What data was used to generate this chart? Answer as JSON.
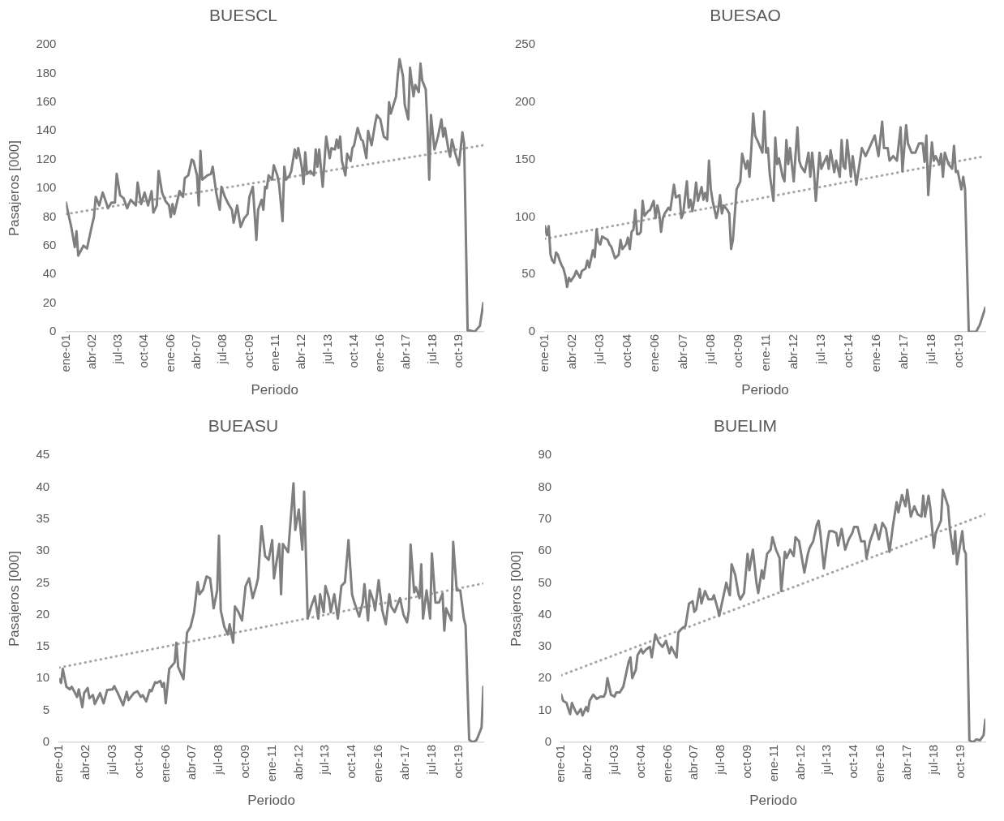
{
  "chart_data": [
    {
      "type": "line",
      "title": "BUESCL",
      "xlabel": "Periodo",
      "ylabel": "Pasajeros [000]",
      "xlim": [
        "2001-01",
        "2020-12"
      ],
      "xticks": [
        {
          "value": "2001-01",
          "label": "ene-01"
        },
        {
          "value": "2002-04",
          "label": "abr-02"
        },
        {
          "value": "2003-07",
          "label": "jul-03"
        },
        {
          "value": "2004-10",
          "label": "oct-04"
        },
        {
          "value": "2006-01",
          "label": "ene-06"
        },
        {
          "value": "2007-04",
          "label": "abr-07"
        },
        {
          "value": "2008-07",
          "label": "jul-08"
        },
        {
          "value": "2009-10",
          "label": "oct-09"
        },
        {
          "value": "2011-01",
          "label": "ene-11"
        },
        {
          "value": "2012-04",
          "label": "abr-12"
        },
        {
          "value": "2013-07",
          "label": "jul-13"
        },
        {
          "value": "2014-10",
          "label": "oct-14"
        },
        {
          "value": "2016-01",
          "label": "ene-16"
        },
        {
          "value": "2017-04",
          "label": "abr-17"
        },
        {
          "value": "2018-07",
          "label": "jul-18"
        },
        {
          "value": "2019-10",
          "label": "oct-19"
        }
      ],
      "ylim": [
        0,
        200
      ],
      "yticks": [
        0,
        20,
        40,
        60,
        80,
        100,
        120,
        140,
        160,
        180,
        200
      ],
      "grid": false,
      "legend": false,
      "marker": "none",
      "series": [
        {
          "color": "#7f7f7f",
          "line_style": "solid",
          "x": [
            "2001-01",
            "2001-02",
            "2001-04",
            "2001-06",
            "2001-07",
            "2001-08",
            "2001-11",
            "2002-01",
            "2002-04",
            "2002-05",
            "2002-06",
            "2002-08",
            "2002-10",
            "2002-12",
            "2003-01",
            "2003-03",
            "2003-05",
            "2003-06",
            "2003-08",
            "2003-10",
            "2003-12",
            "2004-02",
            "2004-05",
            "2004-06",
            "2004-08",
            "2004-10",
            "2004-12",
            "2005-02",
            "2005-03",
            "2005-05",
            "2005-06",
            "2005-08",
            "2005-10",
            "2005-12",
            "2006-01",
            "2006-02",
            "2006-03",
            "2006-06",
            "2006-08",
            "2006-09",
            "2006-11",
            "2007-01",
            "2007-02",
            "2007-04",
            "2007-05",
            "2007-06",
            "2007-07",
            "2007-10",
            "2007-12",
            "2008-01",
            "2008-03",
            "2008-04",
            "2008-05",
            "2008-06",
            "2008-08",
            "2008-10",
            "2008-12",
            "2009-01",
            "2009-03",
            "2009-05",
            "2009-07",
            "2009-09",
            "2009-10",
            "2009-12",
            "2010-02",
            "2010-03",
            "2010-05",
            "2010-06",
            "2010-07",
            "2010-08",
            "2010-09",
            "2010-11",
            "2010-12",
            "2011-02",
            "2011-03",
            "2011-05",
            "2011-06",
            "2011-07",
            "2011-09",
            "2011-10",
            "2011-12",
            "2012-01",
            "2012-02",
            "2012-04",
            "2012-05",
            "2012-06",
            "2012-07",
            "2012-09",
            "2012-11",
            "2012-12",
            "2013-01",
            "2013-02",
            "2013-04",
            "2013-06",
            "2013-08",
            "2013-09",
            "2013-11",
            "2013-12",
            "2014-01",
            "2014-02",
            "2014-03",
            "2014-05",
            "2014-06",
            "2014-08",
            "2014-09",
            "2014-10",
            "2014-12",
            "2015-02",
            "2015-03",
            "2015-05",
            "2015-06",
            "2015-08",
            "2015-10",
            "2015-11",
            "2016-01",
            "2016-03",
            "2016-05",
            "2016-06",
            "2016-07",
            "2016-10",
            "2016-11",
            "2016-12",
            "2017-02",
            "2017-03",
            "2017-05",
            "2017-06",
            "2017-08",
            "2017-09",
            "2017-11",
            "2017-12",
            "2018-01",
            "2018-03",
            "2018-04",
            "2018-05",
            "2018-06",
            "2018-08",
            "2018-10",
            "2018-12",
            "2019-01",
            "2019-02",
            "2019-04",
            "2019-05",
            "2019-06",
            "2019-08",
            "2019-10",
            "2019-12",
            "2020-01",
            "2020-03",
            "2020-04",
            "2020-07",
            "2020-10",
            "2020-12"
          ],
          "values": [
            90,
            84,
            73,
            59,
            70,
            53,
            60,
            58,
            75,
            80,
            94,
            88,
            97,
            90,
            86,
            90,
            90,
            110,
            95,
            93,
            86,
            92,
            88,
            104,
            89,
            97,
            88,
            98,
            83,
            88,
            112,
            97,
            91,
            88,
            80,
            89,
            82,
            98,
            94,
            107,
            109,
            120,
            119,
            109,
            88,
            126,
            106,
            109,
            110,
            115,
            97,
            91,
            85,
            101,
            94,
            89,
            85,
            76,
            88,
            73,
            79,
            82,
            94,
            101,
            64,
            85,
            92,
            85,
            101,
            100,
            109,
            106,
            116,
            109,
            103,
            77,
            115,
            106,
            109,
            112,
            127,
            121,
            128,
            115,
            103,
            125,
            110,
            112,
            109,
            127,
            115,
            127,
            101,
            136,
            121,
            128,
            127,
            134,
            128,
            136,
            119,
            109,
            124,
            119,
            128,
            130,
            142,
            134,
            133,
            121,
            140,
            130,
            145,
            151,
            148,
            136,
            134,
            160,
            152,
            164,
            179,
            190,
            178,
            158,
            148,
            184,
            164,
            172,
            167,
            187,
            175,
            169,
            143,
            106,
            151,
            127,
            136,
            148,
            136,
            142,
            127,
            122,
            134,
            124,
            116,
            139,
            131,
            1,
            1,
            0,
            4,
            20
          ]
        },
        {
          "type": "line",
          "color": "#a5a5a5",
          "line_style": "dotted",
          "x": [
            "2001-01",
            "2020-12"
          ],
          "values": [
            82,
            130
          ]
        }
      ]
    },
    {
      "type": "line",
      "title": "BUESAO",
      "xlabel": "Periodo",
      "xlim": [
        "2001-01",
        "2020-12"
      ],
      "xticks": [
        {
          "value": "2001-01",
          "label": "ene-01"
        },
        {
          "value": "2002-04",
          "label": "abr-02"
        },
        {
          "value": "2003-07",
          "label": "jul-03"
        },
        {
          "value": "2004-10",
          "label": "oct-04"
        },
        {
          "value": "2006-01",
          "label": "ene-06"
        },
        {
          "value": "2007-04",
          "label": "abr-07"
        },
        {
          "value": "2008-07",
          "label": "jul-08"
        },
        {
          "value": "2009-10",
          "label": "oct-09"
        },
        {
          "value": "2011-01",
          "label": "ene-11"
        },
        {
          "value": "2012-04",
          "label": "abr-12"
        },
        {
          "value": "2013-07",
          "label": "jul-13"
        },
        {
          "value": "2014-10",
          "label": "oct-14"
        },
        {
          "value": "2016-01",
          "label": "ene-16"
        },
        {
          "value": "2017-04",
          "label": "abr-17"
        },
        {
          "value": "2018-07",
          "label": "jul-18"
        },
        {
          "value": "2019-10",
          "label": "oct-19"
        }
      ],
      "ylim": [
        0,
        250
      ],
      "yticks": [
        0,
        50,
        100,
        150,
        200,
        250
      ],
      "grid": false,
      "legend": false,
      "marker": "none",
      "series": [
        {
          "color": "#7f7f7f",
          "line_style": "solid",
          "x": [
            "2001-01",
            "2001-02",
            "2001-03",
            "2001-04",
            "2001-05",
            "2001-06",
            "2001-07",
            "2001-08",
            "2001-09",
            "2001-10",
            "2001-11",
            "2001-12",
            "2002-01",
            "2002-02",
            "2002-03",
            "2002-05",
            "2002-06",
            "2002-08",
            "2002-09",
            "2002-11",
            "2002-12",
            "2003-01",
            "2003-03",
            "2003-04",
            "2003-05",
            "2003-06",
            "2003-07",
            "2003-08",
            "2003-11",
            "2003-12",
            "2004-01",
            "2004-03",
            "2004-05",
            "2004-06",
            "2004-07",
            "2004-09",
            "2004-10",
            "2004-11",
            "2004-12",
            "2005-01",
            "2005-02",
            "2005-03",
            "2005-04",
            "2005-05",
            "2005-06",
            "2005-07",
            "2005-08",
            "2005-09",
            "2005-10",
            "2005-12",
            "2006-01",
            "2006-02",
            "2006-03",
            "2006-04",
            "2006-05",
            "2006-06",
            "2006-08",
            "2006-09",
            "2006-11",
            "2006-12",
            "2007-02",
            "2007-03",
            "2007-04",
            "2007-06",
            "2007-07",
            "2007-08",
            "2007-09",
            "2007-10",
            "2007-11",
            "2007-12",
            "2008-02",
            "2008-03",
            "2008-04",
            "2008-05",
            "2008-06",
            "2008-07",
            "2008-08",
            "2008-10",
            "2008-11",
            "2008-12",
            "2009-01",
            "2009-02",
            "2009-04",
            "2009-05",
            "2009-06",
            "2009-07",
            "2009-09",
            "2009-11",
            "2009-12",
            "2010-02",
            "2010-03",
            "2010-04",
            "2010-05",
            "2010-06",
            "2010-07",
            "2010-09",
            "2010-11",
            "2010-12",
            "2011-01",
            "2011-02",
            "2011-03",
            "2011-05",
            "2011-06",
            "2011-07",
            "2011-08",
            "2011-10",
            "2011-11",
            "2011-12",
            "2012-01",
            "2012-02",
            "2012-04",
            "2012-06",
            "2012-07",
            "2012-08",
            "2012-10",
            "2012-12",
            "2013-01",
            "2013-02",
            "2013-03",
            "2013-04",
            "2013-06",
            "2013-07",
            "2013-08",
            "2013-10",
            "2013-11",
            "2013-12",
            "2014-02",
            "2014-03",
            "2014-05",
            "2014-06",
            "2014-07",
            "2014-08",
            "2014-09",
            "2014-11",
            "2014-12",
            "2015-02",
            "2015-05",
            "2015-07",
            "2015-09",
            "2015-12",
            "2016-02",
            "2016-04",
            "2016-05",
            "2016-07",
            "2016-08",
            "2016-10",
            "2016-12",
            "2017-02",
            "2017-03",
            "2017-05",
            "2017-06",
            "2017-08",
            "2017-10",
            "2017-12",
            "2018-02",
            "2018-03",
            "2018-04",
            "2018-05",
            "2018-07",
            "2018-08",
            "2018-09",
            "2018-11",
            "2018-12",
            "2019-01",
            "2019-02",
            "2019-04",
            "2019-06",
            "2019-07",
            "2019-08",
            "2019-09",
            "2019-11",
            "2019-12",
            "2020-01",
            "2020-03",
            "2020-05",
            "2020-07",
            "2020-09",
            "2020-12"
          ],
          "values": [
            92,
            84,
            92,
            67,
            62,
            60,
            69,
            67,
            62,
            58,
            55,
            49,
            39,
            47,
            44,
            49,
            53,
            47,
            53,
            55,
            62,
            56,
            71,
            65,
            89,
            78,
            76,
            83,
            80,
            76,
            74,
            64,
            67,
            80,
            72,
            76,
            82,
            72,
            87,
            89,
            106,
            85,
            85,
            87,
            114,
            101,
            103,
            105,
            106,
            114,
            99,
            110,
            103,
            87,
            99,
            103,
            108,
            106,
            128,
            117,
            119,
            99,
            103,
            131,
            108,
            115,
            105,
            115,
            130,
            114,
            126,
            115,
            121,
            114,
            149,
            124,
            114,
            99,
            106,
            119,
            103,
            110,
            106,
            103,
            72,
            80,
            124,
            131,
            155,
            142,
            149,
            135,
            160,
            190,
            171,
            164,
            156,
            192,
            156,
            160,
            137,
            114,
            169,
            146,
            151,
            135,
            131,
            167,
            146,
            160,
            131,
            178,
            149,
            144,
            139,
            156,
            135,
            156,
            139,
            114,
            156,
            142,
            146,
            153,
            142,
            158,
            139,
            149,
            135,
            167,
            144,
            142,
            167,
            135,
            153,
            128,
            160,
            153,
            160,
            171,
            153,
            183,
            160,
            160,
            149,
            153,
            149,
            178,
            140,
            180,
            164,
            156,
            156,
            164,
            164,
            148,
            171,
            119,
            165,
            149,
            153,
            146,
            155,
            135,
            156,
            146,
            142,
            162,
            139,
            140,
            124,
            135,
            124,
            0,
            0,
            0,
            6,
            21
          ]
        },
        {
          "type": "line",
          "color": "#a5a5a5",
          "line_style": "dotted",
          "x": [
            "2001-01",
            "2020-12"
          ],
          "values": [
            81,
            153
          ]
        }
      ]
    },
    {
      "type": "line",
      "title": "BUEASU",
      "xlabel": "Periodo",
      "ylabel": "Pasajeros [000]",
      "xlim": [
        "2001-01",
        "2020-12"
      ],
      "xticks": [
        {
          "value": "2001-01",
          "label": "ene-01"
        },
        {
          "value": "2002-04",
          "label": "abr-02"
        },
        {
          "value": "2003-07",
          "label": "jul-03"
        },
        {
          "value": "2004-10",
          "label": "oct-04"
        },
        {
          "value": "2006-01",
          "label": "ene-06"
        },
        {
          "value": "2007-04",
          "label": "abr-07"
        },
        {
          "value": "2008-07",
          "label": "jul-08"
        },
        {
          "value": "2009-10",
          "label": "oct-09"
        },
        {
          "value": "2011-01",
          "label": "ene-11"
        },
        {
          "value": "2012-04",
          "label": "abr-12"
        },
        {
          "value": "2013-07",
          "label": "jul-13"
        },
        {
          "value": "2014-10",
          "label": "oct-14"
        },
        {
          "value": "2016-01",
          "label": "ene-16"
        },
        {
          "value": "2017-04",
          "label": "abr-17"
        },
        {
          "value": "2018-07",
          "label": "jul-18"
        },
        {
          "value": "2019-10",
          "label": "oct-19"
        }
      ],
      "ylim": [
        0,
        45
      ],
      "yticks": [
        0,
        5,
        10,
        15,
        20,
        25,
        30,
        35,
        40,
        45
      ],
      "grid": false,
      "legend": false,
      "marker": "none",
      "series": [
        {
          "color": "#7f7f7f",
          "line_style": "solid",
          "x": [
            "2001-01",
            "2001-02",
            "2001-03",
            "2001-05",
            "2001-07",
            "2001-08",
            "2001-09",
            "2001-11",
            "2001-12",
            "2002-02",
            "2002-03",
            "2002-05",
            "2002-06",
            "2002-08",
            "2002-09",
            "2002-12",
            "2003-02",
            "2003-04",
            "2003-07",
            "2003-08",
            "2003-10",
            "2004-01",
            "2004-03",
            "2004-04",
            "2004-07",
            "2004-09",
            "2004-11",
            "2004-12",
            "2005-02",
            "2005-04",
            "2005-05",
            "2005-07",
            "2005-08",
            "2005-10",
            "2005-11",
            "2005-12",
            "2006-01",
            "2006-03",
            "2006-06",
            "2006-07",
            "2006-08",
            "2006-11",
            "2007-01",
            "2007-03",
            "2007-05",
            "2007-07",
            "2007-08",
            "2007-10",
            "2007-12",
            "2008-02",
            "2008-03",
            "2008-04",
            "2008-06",
            "2008-07",
            "2008-08",
            "2008-10",
            "2008-12",
            "2009-01",
            "2009-03",
            "2009-04",
            "2009-06",
            "2009-08",
            "2009-10",
            "2009-12",
            "2010-02",
            "2010-04",
            "2010-05",
            "2010-07",
            "2010-09",
            "2010-11",
            "2011-01",
            "2011-02",
            "2011-05",
            "2011-06",
            "2011-07",
            "2011-10",
            "2012-01",
            "2012-02",
            "2012-04",
            "2012-06",
            "2012-07",
            "2012-09",
            "2012-11",
            "2013-01",
            "2013-03",
            "2013-04",
            "2013-06",
            "2013-07",
            "2013-09",
            "2013-10",
            "2013-12",
            "2014-02",
            "2014-04",
            "2014-06",
            "2014-08",
            "2014-10",
            "2014-11",
            "2015-02",
            "2015-04",
            "2015-05",
            "2015-07",
            "2015-08",
            "2015-10",
            "2015-11",
            "2016-01",
            "2016-03",
            "2016-05",
            "2016-07",
            "2016-08",
            "2016-10",
            "2016-12",
            "2017-01",
            "2017-03",
            "2017-05",
            "2017-06",
            "2017-07",
            "2017-09",
            "2017-10",
            "2017-12",
            "2018-01",
            "2018-02",
            "2018-04",
            "2018-06",
            "2018-07",
            "2018-09",
            "2018-11",
            "2019-01",
            "2019-02",
            "2019-03",
            "2019-06",
            "2019-07",
            "2019-09",
            "2019-11",
            "2020-01",
            "2020-02",
            "2020-04",
            "2020-06",
            "2020-08",
            "2020-09",
            "2020-11",
            "2020-12"
          ],
          "values": [
            9.9,
            9.3,
            11.5,
            8.7,
            8.3,
            8.7,
            8.2,
            7.1,
            8.3,
            5.5,
            7.7,
            8.5,
            6.9,
            7.4,
            6.0,
            7.7,
            6.1,
            8.2,
            8.3,
            8.8,
            7.7,
            5.8,
            7.9,
            6.6,
            7.7,
            8.0,
            7.1,
            7.4,
            6.4,
            8.2,
            8.0,
            9.4,
            9.3,
            9.6,
            8.7,
            9.3,
            6.1,
            11.5,
            12.5,
            15.6,
            11.8,
            9.9,
            17.2,
            18.1,
            20.4,
            25.1,
            23.2,
            23.9,
            26.0,
            25.7,
            23.5,
            21.0,
            23.8,
            32.4,
            20.7,
            18.1,
            16.9,
            18.5,
            15.6,
            21.3,
            20.4,
            19.1,
            24.5,
            25.7,
            22.6,
            24.5,
            25.7,
            33.9,
            29.2,
            28.6,
            31.7,
            25.7,
            31.1,
            23.2,
            31.1,
            29.8,
            40.6,
            33.3,
            36.5,
            30.2,
            39.3,
            19.4,
            21.3,
            22.9,
            19.4,
            23.2,
            20.4,
            24.5,
            22.6,
            20.4,
            23.2,
            19.4,
            24.5,
            25.1,
            31.7,
            23.2,
            22.2,
            19.7,
            21.9,
            24.8,
            19.1,
            23.8,
            22.2,
            20.7,
            25.4,
            20.7,
            18.5,
            23.2,
            21.3,
            20.4,
            21.9,
            22.6,
            20.0,
            18.8,
            20.7,
            31.0,
            23.5,
            24.3,
            22.6,
            27.9,
            19.4,
            23.8,
            19.4,
            29.6,
            21.9,
            21.9,
            23.3,
            17.5,
            21.0,
            19.1,
            31.4,
            23.8,
            23.8,
            19.4,
            18.3,
            0.4,
            0,
            0.3,
            0.9,
            2.3,
            8.7
          ]
        },
        {
          "type": "line",
          "color": "#a5a5a5",
          "line_style": "dotted",
          "x": [
            "2001-01",
            "2020-12"
          ],
          "values": [
            11.7,
            24.9
          ]
        }
      ]
    },
    {
      "type": "line",
      "title": "BUELIM",
      "xlabel": "Periodo",
      "ylabel": "Pasajeros [000]",
      "xlim": [
        "2001-01",
        "2020-12"
      ],
      "xticks": [
        {
          "value": "2001-01",
          "label": "ene-01"
        },
        {
          "value": "2002-04",
          "label": "abr-02"
        },
        {
          "value": "2003-07",
          "label": "jul-03"
        },
        {
          "value": "2004-10",
          "label": "oct-04"
        },
        {
          "value": "2006-01",
          "label": "ene-06"
        },
        {
          "value": "2007-04",
          "label": "abr-07"
        },
        {
          "value": "2008-07",
          "label": "jul-08"
        },
        {
          "value": "2009-10",
          "label": "oct-09"
        },
        {
          "value": "2011-01",
          "label": "ene-11"
        },
        {
          "value": "2012-04",
          "label": "abr-12"
        },
        {
          "value": "2013-07",
          "label": "jul-13"
        },
        {
          "value": "2014-10",
          "label": "oct-14"
        },
        {
          "value": "2016-01",
          "label": "ene-16"
        },
        {
          "value": "2017-04",
          "label": "abr-17"
        },
        {
          "value": "2018-07",
          "label": "jul-18"
        },
        {
          "value": "2019-10",
          "label": "oct-19"
        }
      ],
      "ylim": [
        0,
        90
      ],
      "yticks": [
        0,
        10,
        20,
        30,
        40,
        50,
        60,
        70,
        80,
        90
      ],
      "grid": false,
      "legend": false,
      "marker": "none",
      "series": [
        {
          "color": "#7f7f7f",
          "line_style": "solid",
          "x": [
            "2001-01",
            "2001-02",
            "2001-04",
            "2001-05",
            "2001-06",
            "2001-07",
            "2001-09",
            "2001-10",
            "2001-12",
            "2002-01",
            "2002-03",
            "2002-04",
            "2002-05",
            "2002-07",
            "2002-09",
            "2002-11",
            "2003-01",
            "2003-02",
            "2003-03",
            "2003-05",
            "2003-07",
            "2003-08",
            "2003-10",
            "2003-12",
            "2004-01",
            "2004-03",
            "2004-04",
            "2004-05",
            "2004-07",
            "2004-08",
            "2004-10",
            "2004-11",
            "2005-01",
            "2005-03",
            "2005-04",
            "2005-06",
            "2005-08",
            "2005-10",
            "2005-12",
            "2006-02",
            "2006-03",
            "2006-06",
            "2006-07",
            "2006-09",
            "2006-11",
            "2007-01",
            "2007-03",
            "2007-04",
            "2007-05",
            "2007-07",
            "2007-08",
            "2007-10",
            "2007-12",
            "2008-02",
            "2008-03",
            "2008-05",
            "2008-06",
            "2008-08",
            "2008-10",
            "2008-12",
            "2009-01",
            "2009-03",
            "2009-05",
            "2009-06",
            "2009-08",
            "2009-10",
            "2009-11",
            "2010-01",
            "2010-03",
            "2010-04",
            "2010-06",
            "2010-07",
            "2010-09",
            "2010-11",
            "2010-12",
            "2011-02",
            "2011-04",
            "2011-05",
            "2011-07",
            "2011-08",
            "2011-10",
            "2011-12",
            "2012-01",
            "2012-03",
            "2012-06",
            "2012-08",
            "2012-09",
            "2012-11",
            "2013-01",
            "2013-02",
            "2013-03",
            "2013-05",
            "2013-07",
            "2013-08",
            "2013-10",
            "2013-12",
            "2014-01",
            "2014-03",
            "2014-05",
            "2014-07",
            "2014-09",
            "2014-10",
            "2014-12",
            "2015-02",
            "2015-04",
            "2015-05",
            "2015-07",
            "2015-09",
            "2015-10",
            "2015-12",
            "2016-02",
            "2016-04",
            "2016-06",
            "2016-08",
            "2016-10",
            "2016-11",
            "2017-01",
            "2017-03",
            "2017-04",
            "2017-06",
            "2017-08",
            "2017-10",
            "2017-12",
            "2018-01",
            "2018-02",
            "2018-04",
            "2018-05",
            "2018-07",
            "2018-08",
            "2018-11",
            "2018-12",
            "2019-03",
            "2019-04",
            "2019-06",
            "2019-07",
            "2019-08",
            "2019-11",
            "2019-12",
            "2020-01",
            "2020-03",
            "2020-05",
            "2020-07",
            "2020-09",
            "2020-11",
            "2020-12"
          ],
          "values": [
            14.9,
            13.0,
            12.3,
            10.4,
            8.8,
            12.3,
            9.7,
            8.8,
            10.4,
            8.4,
            11.0,
            9.7,
            13.0,
            14.9,
            13.6,
            14.3,
            14.3,
            15.6,
            20.1,
            14.9,
            14.3,
            15.6,
            15.6,
            17.5,
            20.1,
            25.3,
            26.6,
            20.1,
            22.7,
            27.3,
            29.2,
            27.9,
            29.2,
            29.9,
            26.6,
            33.8,
            31.2,
            29.9,
            31.8,
            27.9,
            29.9,
            26.6,
            34.4,
            35.7,
            36.4,
            43.5,
            44.2,
            40.9,
            41.6,
            48.1,
            43.5,
            47.4,
            44.8,
            44.8,
            46.1,
            42.2,
            39.6,
            44.8,
            50.0,
            46.1,
            55.8,
            52.6,
            46.1,
            44.8,
            46.8,
            59.1,
            53.9,
            60.4,
            50.0,
            46.8,
            53.9,
            51.3,
            59.1,
            60.4,
            64.3,
            60.4,
            57.8,
            47.4,
            59.7,
            57.8,
            60.4,
            58.4,
            64.3,
            63.0,
            53.2,
            59.1,
            61.0,
            63.0,
            68.2,
            69.5,
            65.6,
            54.5,
            63.0,
            66.2,
            66.2,
            65.6,
            61.7,
            66.9,
            60.4,
            63.6,
            65.6,
            67.5,
            67.5,
            63.0,
            63.0,
            57.8,
            63.0,
            66.2,
            68.2,
            63.6,
            68.8,
            66.9,
            59.7,
            68.2,
            75.3,
            72.1,
            77.5,
            74.0,
            79.2,
            70.8,
            74.0,
            71.4,
            70.8,
            77.3,
            70.8,
            77.3,
            73.4,
            61.0,
            65.6,
            69.5,
            79.2,
            74.0,
            66.9,
            59.1,
            66.2,
            55.8,
            66.2,
            60.4,
            59.1,
            0.6,
            0,
            0.9,
            0.6,
            2.2,
            7.1
          ]
        },
        {
          "type": "line",
          "color": "#a5a5a5",
          "line_style": "dotted",
          "x": [
            "2001-01",
            "2020-12"
          ],
          "values": [
            21,
            71.5
          ]
        }
      ]
    }
  ]
}
